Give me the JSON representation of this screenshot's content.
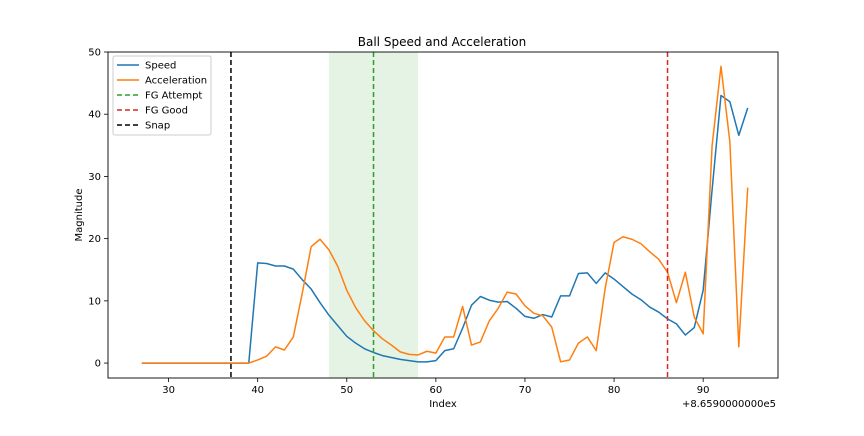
{
  "chart_data": {
    "type": "line",
    "title": "Ball Speed and Acceleration",
    "xlabel": "Index",
    "ylabel": "Magnitude",
    "x_offset_label": "+8.6590000000e5",
    "xlim": [
      23.2,
      98.4
    ],
    "ylim": [
      -2.4,
      50
    ],
    "x_ticks": [
      30,
      40,
      50,
      60,
      70,
      80,
      90
    ],
    "x_tick_labels": [
      "30",
      "40",
      "50",
      "60",
      "70",
      "80",
      "90"
    ],
    "y_ticks": [
      0,
      10,
      20,
      30,
      40,
      50
    ],
    "y_tick_labels": [
      "0",
      "10",
      "20",
      "30",
      "40",
      "50"
    ],
    "grid": false,
    "legend_position": "top-left",
    "x": [
      27,
      28,
      29,
      30,
      31,
      32,
      33,
      34,
      35,
      36,
      37,
      38,
      39,
      40,
      41,
      42,
      43,
      44,
      45,
      46,
      47,
      48,
      49,
      50,
      51,
      52,
      53,
      54,
      55,
      56,
      57,
      58,
      59,
      60,
      61,
      62,
      63,
      64,
      65,
      66,
      67,
      68,
      69,
      70,
      71,
      72,
      73,
      74,
      75,
      76,
      77,
      78,
      79,
      80,
      81,
      82,
      83,
      84,
      85,
      86,
      87,
      88,
      89,
      90,
      91,
      92,
      93,
      94,
      95
    ],
    "series": [
      {
        "name": "Speed",
        "color": "#1f77b4",
        "values": [
          0,
          0,
          0,
          0,
          0,
          0,
          0,
          0,
          0,
          0,
          0,
          0,
          0,
          16.1,
          16.0,
          15.6,
          15.6,
          15.1,
          13.4,
          11.9,
          9.7,
          7.7,
          6.0,
          4.3,
          3.2,
          2.3,
          1.7,
          1.2,
          0.9,
          0.6,
          0.4,
          0.2,
          0.2,
          0.4,
          2.0,
          2.3,
          5.6,
          9.3,
          10.7,
          10.1,
          9.8,
          9.9,
          8.8,
          7.5,
          7.2,
          7.8,
          7.4,
          10.8,
          10.8,
          14.4,
          14.5,
          12.8,
          14.5,
          13.5,
          12.3,
          11.1,
          10.2,
          9.0,
          8.2,
          7.1,
          6.3,
          4.5,
          5.7,
          11.7,
          27.8,
          43.0,
          42.0,
          36.6,
          41.0
        ]
      },
      {
        "name": "Acceleration",
        "color": "#ff7f0e",
        "values": [
          0,
          0,
          0,
          0,
          0,
          0,
          0,
          0,
          0,
          0,
          0,
          0,
          0,
          0.5,
          1.1,
          2.6,
          2.1,
          4.2,
          11.2,
          18.7,
          19.9,
          18.2,
          15.5,
          11.7,
          8.9,
          6.8,
          5.2,
          3.9,
          2.9,
          1.8,
          1.4,
          1.3,
          1.9,
          1.6,
          4.2,
          4.2,
          9.1,
          2.9,
          3.4,
          6.8,
          8.8,
          11.4,
          11.1,
          9.2,
          8.0,
          7.6,
          5.8,
          0.2,
          0.5,
          3.2,
          4.2,
          2.0,
          12.0,
          19.4,
          20.3,
          19.9,
          19.2,
          17.9,
          16.7,
          14.6,
          9.7,
          14.6,
          7.4,
          4.7,
          34.9,
          47.7,
          35.5,
          2.6,
          28.2
        ]
      }
    ],
    "vlines": [
      {
        "name": "FG Attempt",
        "x": 53,
        "color": "#2ca02c"
      },
      {
        "name": "FG Good",
        "x": 86,
        "color": "#d62728"
      },
      {
        "name": "Snap",
        "x": 37,
        "color": "#000000"
      }
    ],
    "span": {
      "x_start": 48,
      "x_end": 58,
      "color": "#2ca02c"
    },
    "legend": [
      "Speed",
      "Acceleration",
      "FG Attempt",
      "FG Good",
      "Snap"
    ]
  }
}
